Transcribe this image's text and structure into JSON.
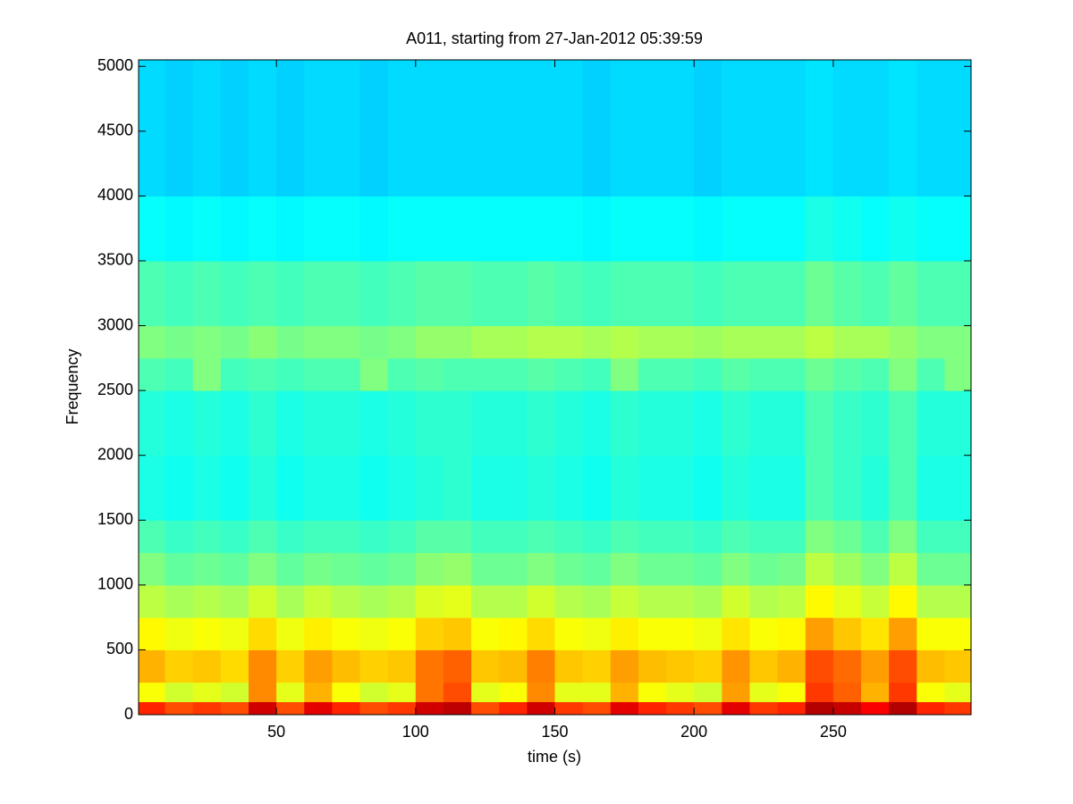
{
  "chart_data": {
    "type": "heatmap",
    "title": "A011, starting from 27-Jan-2012 05:39:59",
    "x_label": "time (s)",
    "y_label": "Frequency",
    "colormap": "jet",
    "xlim": [
      0.5,
      299.5
    ],
    "xticks": [
      50,
      100,
      150,
      200,
      250
    ],
    "ylim": [
      0,
      5050
    ],
    "yticks": [
      0,
      500,
      1000,
      1500,
      2000,
      2500,
      3000,
      3500,
      4000,
      4500,
      5000
    ],
    "x_edges": [
      0,
      10,
      20,
      30,
      40,
      50,
      60,
      70,
      80,
      90,
      100,
      110,
      120,
      130,
      140,
      150,
      160,
      170,
      180,
      190,
      200,
      210,
      220,
      230,
      240,
      250,
      260,
      270,
      280,
      290,
      300
    ],
    "y_edges": [
      0,
      100,
      250,
      500,
      750,
      1000,
      1250,
      1500,
      2000,
      2500,
      2750,
      3000,
      3500,
      4000,
      5050
    ],
    "z": [
      [
        0.84,
        0.8,
        0.82,
        0.8,
        0.92,
        0.8,
        0.9,
        0.84,
        0.8,
        0.82,
        0.92,
        0.94,
        0.8,
        0.84,
        0.92,
        0.82,
        0.8,
        0.9,
        0.84,
        0.82,
        0.8,
        0.9,
        0.82,
        0.84,
        0.95,
        0.93,
        0.88,
        0.95,
        0.84,
        0.82
      ],
      [
        0.62,
        0.58,
        0.6,
        0.58,
        0.74,
        0.6,
        0.7,
        0.62,
        0.58,
        0.6,
        0.76,
        0.8,
        0.6,
        0.62,
        0.74,
        0.6,
        0.6,
        0.7,
        0.62,
        0.6,
        0.58,
        0.72,
        0.6,
        0.62,
        0.82,
        0.78,
        0.7,
        0.82,
        0.62,
        0.6
      ],
      [
        0.7,
        0.67,
        0.68,
        0.66,
        0.74,
        0.67,
        0.72,
        0.69,
        0.67,
        0.68,
        0.76,
        0.78,
        0.68,
        0.69,
        0.75,
        0.68,
        0.67,
        0.72,
        0.69,
        0.68,
        0.67,
        0.73,
        0.68,
        0.7,
        0.8,
        0.77,
        0.72,
        0.8,
        0.69,
        0.68
      ],
      [
        0.63,
        0.61,
        0.62,
        0.61,
        0.66,
        0.61,
        0.64,
        0.62,
        0.61,
        0.62,
        0.67,
        0.68,
        0.62,
        0.63,
        0.66,
        0.62,
        0.61,
        0.64,
        0.62,
        0.62,
        0.61,
        0.65,
        0.62,
        0.63,
        0.72,
        0.68,
        0.65,
        0.72,
        0.62,
        0.62
      ],
      [
        0.56,
        0.54,
        0.55,
        0.54,
        0.58,
        0.54,
        0.57,
        0.55,
        0.54,
        0.55,
        0.59,
        0.6,
        0.55,
        0.55,
        0.58,
        0.55,
        0.54,
        0.57,
        0.55,
        0.55,
        0.54,
        0.58,
        0.55,
        0.56,
        0.63,
        0.6,
        0.57,
        0.63,
        0.55,
        0.55
      ],
      [
        0.5,
        0.47,
        0.48,
        0.47,
        0.5,
        0.47,
        0.49,
        0.48,
        0.47,
        0.48,
        0.51,
        0.52,
        0.48,
        0.48,
        0.5,
        0.48,
        0.47,
        0.5,
        0.48,
        0.48,
        0.47,
        0.5,
        0.48,
        0.49,
        0.56,
        0.53,
        0.5,
        0.56,
        0.48,
        0.48
      ],
      [
        0.45,
        0.43,
        0.44,
        0.43,
        0.45,
        0.43,
        0.44,
        0.44,
        0.43,
        0.44,
        0.46,
        0.46,
        0.44,
        0.44,
        0.45,
        0.44,
        0.43,
        0.45,
        0.44,
        0.44,
        0.43,
        0.45,
        0.44,
        0.44,
        0.5,
        0.48,
        0.45,
        0.5,
        0.44,
        0.44
      ],
      [
        0.4,
        0.39,
        0.4,
        0.39,
        0.41,
        0.39,
        0.4,
        0.4,
        0.39,
        0.4,
        0.41,
        0.42,
        0.4,
        0.4,
        0.41,
        0.4,
        0.39,
        0.41,
        0.4,
        0.4,
        0.39,
        0.41,
        0.4,
        0.4,
        0.45,
        0.43,
        0.41,
        0.45,
        0.4,
        0.4
      ],
      [
        0.41,
        0.4,
        0.41,
        0.4,
        0.42,
        0.4,
        0.41,
        0.41,
        0.4,
        0.41,
        0.42,
        0.42,
        0.41,
        0.41,
        0.42,
        0.41,
        0.4,
        0.42,
        0.41,
        0.41,
        0.4,
        0.42,
        0.41,
        0.41,
        0.45,
        0.43,
        0.42,
        0.45,
        0.41,
        0.41
      ],
      [
        0.45,
        0.44,
        0.5,
        0.44,
        0.45,
        0.44,
        0.45,
        0.45,
        0.5,
        0.45,
        0.46,
        0.45,
        0.45,
        0.45,
        0.46,
        0.45,
        0.44,
        0.5,
        0.45,
        0.45,
        0.44,
        0.46,
        0.45,
        0.45,
        0.48,
        0.46,
        0.45,
        0.5,
        0.45,
        0.5
      ],
      [
        0.5,
        0.49,
        0.5,
        0.49,
        0.51,
        0.49,
        0.5,
        0.5,
        0.49,
        0.5,
        0.52,
        0.52,
        0.54,
        0.54,
        0.55,
        0.55,
        0.54,
        0.55,
        0.54,
        0.54,
        0.53,
        0.54,
        0.54,
        0.54,
        0.56,
        0.54,
        0.54,
        0.52,
        0.5,
        0.5
      ],
      [
        0.45,
        0.44,
        0.45,
        0.44,
        0.45,
        0.44,
        0.45,
        0.45,
        0.44,
        0.45,
        0.46,
        0.46,
        0.45,
        0.45,
        0.46,
        0.45,
        0.44,
        0.45,
        0.45,
        0.45,
        0.44,
        0.45,
        0.45,
        0.45,
        0.48,
        0.46,
        0.45,
        0.47,
        0.45,
        0.45
      ],
      [
        0.38,
        0.37,
        0.38,
        0.37,
        0.38,
        0.37,
        0.38,
        0.38,
        0.37,
        0.38,
        0.38,
        0.38,
        0.38,
        0.38,
        0.38,
        0.38,
        0.37,
        0.38,
        0.38,
        0.38,
        0.37,
        0.38,
        0.38,
        0.38,
        0.4,
        0.39,
        0.38,
        0.39,
        0.38,
        0.38
      ],
      [
        0.34,
        0.33,
        0.34,
        0.33,
        0.34,
        0.33,
        0.34,
        0.34,
        0.33,
        0.34,
        0.34,
        0.34,
        0.34,
        0.34,
        0.34,
        0.34,
        0.33,
        0.34,
        0.34,
        0.34,
        0.33,
        0.34,
        0.34,
        0.34,
        0.35,
        0.34,
        0.34,
        0.35,
        0.34,
        0.34
      ]
    ]
  }
}
